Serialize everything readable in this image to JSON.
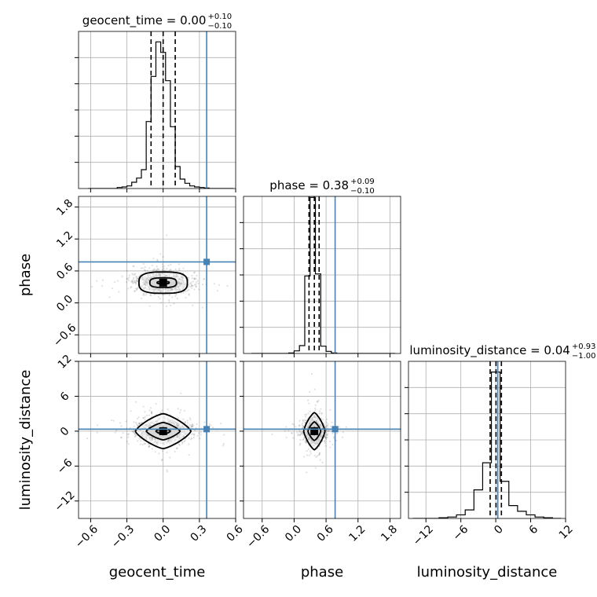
{
  "chart_data": {
    "type": "scatter",
    "parameters": [
      "geocent_time",
      "phase",
      "luminosity_distance"
    ],
    "truth_color": "#4682b4",
    "truths": {
      "geocent_time": 0.36,
      "phase": 0.77,
      "luminosity_distance": 0.35
    },
    "titles": [
      {
        "param": "geocent_time",
        "text": "geocent_time = 0.00",
        "sup": "+0.10",
        "sub": "−0.10"
      },
      {
        "param": "phase",
        "text": "phase = 0.38",
        "sup": "+0.09",
        "sub": "−0.10"
      },
      {
        "param": "luminosity_distance",
        "text": "luminosity_distance = 0.04",
        "sup": "+0.93",
        "sub": "−1.00"
      }
    ],
    "axes": {
      "geocent_time": {
        "range": [
          -0.7,
          0.6
        ],
        "ticks": [
          -0.6,
          -0.3,
          0.0,
          0.3,
          0.6
        ],
        "tick_labels": [
          "−0.6",
          "−0.3",
          "0.0",
          "0.3",
          "0.6"
        ]
      },
      "phase": {
        "range": [
          -0.95,
          2.0
        ],
        "ticks": [
          -0.6,
          0.0,
          0.6,
          1.2,
          1.8
        ],
        "tick_labels": [
          "−0.6",
          "0.0",
          "0.6",
          "1.2",
          "1.8"
        ]
      },
      "luminosity_distance": {
        "range": [
          -15,
          12
        ],
        "ticks": [
          -12,
          -6,
          0,
          6,
          12
        ],
        "tick_labels": [
          "−12",
          "−6",
          "0",
          "6",
          "12"
        ]
      }
    },
    "xlabels": [
      "geocent_time",
      "phase",
      "luminosity_distance"
    ],
    "ylabels": [
      "phase",
      "luminosity_distance"
    ],
    "histograms": {
      "geocent_time": {
        "bin_edges": [
          -0.62,
          -0.58,
          -0.54,
          -0.5,
          -0.46,
          -0.42,
          -0.38,
          -0.34,
          -0.3,
          -0.26,
          -0.22,
          -0.18,
          -0.14,
          -0.1,
          -0.06,
          -0.02,
          0.02,
          0.06,
          0.1,
          0.14,
          0.18,
          0.22,
          0.26,
          0.3,
          0.34,
          0.38,
          0.42,
          0.46,
          0.5,
          0.54,
          0.58
        ],
        "counts": [
          0,
          0,
          0,
          0,
          0,
          0,
          2,
          3,
          5,
          12,
          20,
          36,
          128,
          214,
          280,
          260,
          206,
          118,
          42,
          18,
          10,
          5,
          3,
          2,
          1,
          0,
          0,
          0,
          0,
          0
        ],
        "quantiles": [
          -0.1,
          0.0,
          0.1
        ],
        "ymax": 300
      },
      "phase": {
        "bin_edges": [
          -0.8,
          -0.7,
          -0.6,
          -0.5,
          -0.4,
          -0.3,
          -0.2,
          -0.1,
          0.0,
          0.1,
          0.2,
          0.3,
          0.4,
          0.5,
          0.6,
          0.7,
          0.8,
          0.9,
          1.0,
          1.1,
          1.2,
          1.3,
          1.4,
          1.5,
          1.6,
          1.7,
          1.8,
          1.9
        ],
        "counts": [
          0,
          0,
          0,
          0,
          0,
          0,
          0,
          1,
          5,
          15,
          148,
          298,
          152,
          14,
          4,
          1,
          0,
          0,
          0,
          0,
          0,
          0,
          0,
          0,
          0,
          0,
          0
        ],
        "quantiles": [
          0.28,
          0.38,
          0.47
        ],
        "ymax": 300
      },
      "luminosity_distance": {
        "bin_edges": [
          -14.25,
          -12.75,
          -11.25,
          -9.75,
          -8.25,
          -6.75,
          -5.25,
          -3.75,
          -2.25,
          -0.75,
          0.75,
          2.25,
          3.75,
          5.25,
          6.75,
          8.25,
          9.75,
          11.25
        ],
        "counts": [
          0,
          0,
          0,
          1,
          2,
          5,
          12,
          40,
          78,
          205,
          52,
          18,
          10,
          5,
          2,
          1,
          0
        ],
        "quantiles": [
          -0.96,
          0.04,
          0.97
        ],
        "ymax": 220
      }
    },
    "credible_contours": {
      "phase_vs_geocent_time": {
        "center": [
          0.0,
          0.38
        ],
        "half_widths": [
          [
            0.05,
            0.022
          ],
          [
            0.11,
            0.09
          ],
          [
            0.2,
            0.2
          ]
        ]
      },
      "luminosity_distance_vs_geocent_time": {
        "center": [
          0.0,
          0.0
        ],
        "half_widths": [
          [
            0.06,
            0.6
          ],
          [
            0.14,
            1.5
          ],
          [
            0.23,
            3.0
          ]
        ]
      },
      "luminosity_distance_vs_phase": {
        "center": [
          0.38,
          0.0
        ],
        "half_widths": [
          [
            0.05,
            0.6
          ],
          [
            0.12,
            1.6
          ],
          [
            0.2,
            3.2
          ]
        ]
      }
    },
    "scatter_spread": {
      "geocent_time": 0.1,
      "phase": 0.09,
      "luminosity_distance": 1.0
    },
    "grid": true
  }
}
